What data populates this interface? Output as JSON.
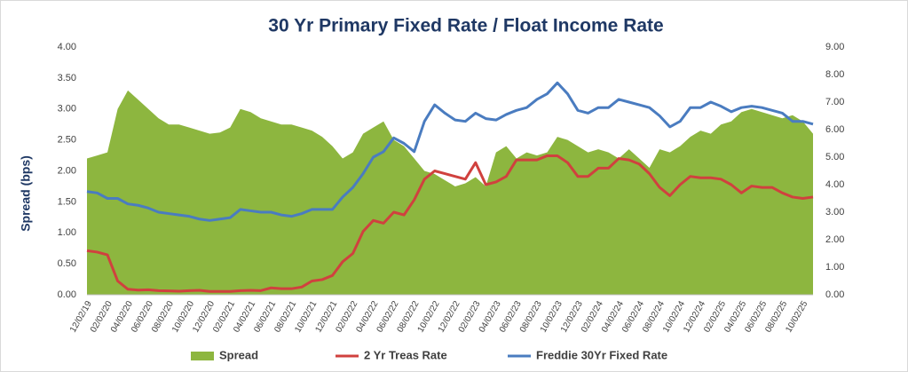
{
  "chart_data": {
    "type": "combo",
    "title": "30 Yr Primary Fixed Rate / Float Income Rate",
    "y_label": "Spread (bps)",
    "grid": false,
    "categories": [
      "12/02/19",
      null,
      "02/02/20",
      null,
      "04/02/20",
      null,
      "06/02/20",
      null,
      "08/02/20",
      null,
      "10/02/20",
      null,
      "12/02/20",
      null,
      "02/02/21",
      null,
      "04/02/21",
      null,
      "06/02/21",
      null,
      "08/02/21",
      null,
      "10/02/21",
      null,
      "12/02/21",
      null,
      "02/02/22",
      null,
      "04/02/22",
      null,
      "06/02/22",
      null,
      "08/02/22",
      null,
      "10/02/22",
      null,
      "12/02/22",
      null,
      "02/02/23",
      null,
      "04/02/23",
      null,
      "06/02/23",
      null,
      "08/02/23",
      null,
      "10/02/23",
      null,
      "12/02/23",
      null,
      "02/02/24",
      null,
      "04/02/24",
      null,
      "06/02/24",
      null,
      "08/02/24",
      null,
      "10/02/24",
      null,
      "12/02/24",
      null,
      "02/02/25",
      null,
      "04/02/25",
      null,
      "06/02/25",
      null,
      "08/02/25",
      null,
      "10/02/25",
      null
    ],
    "ylim": [
      0,
      4
    ],
    "yticks": [
      {
        "value": 0,
        "label": "0.00"
      },
      {
        "value": 0.5,
        "label": "0.50"
      },
      {
        "value": 1,
        "label": "1.00"
      },
      {
        "value": 1.5,
        "label": "1.50"
      },
      {
        "value": 2,
        "label": "2.00"
      },
      {
        "value": 2.5,
        "label": "2.50"
      },
      {
        "value": 3,
        "label": "3.00"
      },
      {
        "value": 3.5,
        "label": "3.50"
      },
      {
        "value": 4,
        "label": "4.00"
      }
    ],
    "y2lim": [
      0,
      9
    ],
    "y2ticks": [
      {
        "value": 0,
        "label": "0.00"
      },
      {
        "value": 1,
        "label": "1.00"
      },
      {
        "value": 2,
        "label": "2.00"
      },
      {
        "value": 3,
        "label": "3.00"
      },
      {
        "value": 4,
        "label": "4.00"
      },
      {
        "value": 5,
        "label": "5.00"
      },
      {
        "value": 6,
        "label": "6.00"
      },
      {
        "value": 7,
        "label": "7.00"
      },
      {
        "value": 8,
        "label": "8.00"
      },
      {
        "value": 9,
        "label": "9.00"
      }
    ],
    "series": [
      {
        "name": "Spread",
        "kind": "area",
        "color": "#8db63f",
        "values": [
          2.2,
          2.25,
          2.3,
          3.0,
          3.3,
          3.15,
          3.0,
          2.85,
          2.75,
          2.75,
          2.7,
          2.65,
          2.6,
          2.62,
          2.7,
          3.0,
          2.95,
          2.85,
          2.8,
          2.75,
          2.75,
          2.7,
          2.65,
          2.55,
          2.4,
          2.2,
          2.3,
          2.6,
          2.7,
          2.8,
          2.5,
          2.4,
          2.2,
          2.0,
          1.95,
          1.85,
          1.75,
          1.8,
          1.9,
          1.75,
          2.3,
          2.4,
          2.2,
          2.3,
          2.25,
          2.3,
          2.55,
          2.5,
          2.4,
          2.3,
          2.35,
          2.3,
          2.2,
          2.35,
          2.2,
          2.05,
          2.35,
          2.3,
          2.4,
          2.55,
          2.65,
          2.6,
          2.75,
          2.8,
          2.95,
          3.0,
          2.95,
          2.9,
          2.85,
          2.9,
          2.8,
          2.6
        ]
      },
      {
        "name": "2 Yr Treas Rate",
        "kind": "line",
        "axis": "y2",
        "color": "#d0413e",
        "values": [
          1.6,
          1.55,
          1.45,
          0.5,
          0.2,
          0.17,
          0.18,
          0.15,
          0.14,
          0.13,
          0.15,
          0.16,
          0.12,
          0.12,
          0.12,
          0.15,
          0.16,
          0.15,
          0.25,
          0.22,
          0.22,
          0.28,
          0.5,
          0.55,
          0.7,
          1.2,
          1.5,
          2.3,
          2.7,
          2.6,
          3.0,
          2.9,
          3.45,
          4.2,
          4.5,
          4.4,
          4.3,
          4.2,
          4.8,
          4.0,
          4.1,
          4.3,
          4.9,
          4.9,
          4.9,
          5.05,
          5.05,
          4.8,
          4.3,
          4.3,
          4.6,
          4.6,
          4.95,
          4.9,
          4.75,
          4.4,
          3.9,
          3.6,
          4.0,
          4.3,
          4.25,
          4.25,
          4.2,
          4.0,
          3.7,
          3.95,
          3.9,
          3.9,
          3.7,
          3.55,
          3.5,
          3.55
        ]
      },
      {
        "name": "Freddie 30Yr Fixed Rate",
        "kind": "line",
        "axis": "y2",
        "color": "#4a7cc0",
        "values": [
          3.75,
          3.7,
          3.5,
          3.5,
          3.3,
          3.25,
          3.15,
          3.0,
          2.95,
          2.9,
          2.85,
          2.75,
          2.7,
          2.75,
          2.8,
          3.1,
          3.05,
          3.0,
          3.0,
          2.9,
          2.85,
          2.95,
          3.1,
          3.1,
          3.1,
          3.55,
          3.9,
          4.4,
          5.0,
          5.2,
          5.7,
          5.5,
          5.2,
          6.3,
          6.9,
          6.6,
          6.35,
          6.3,
          6.6,
          6.4,
          6.35,
          6.55,
          6.7,
          6.8,
          7.1,
          7.3,
          7.7,
          7.3,
          6.7,
          6.6,
          6.8,
          6.8,
          7.1,
          7.0,
          6.9,
          6.8,
          6.5,
          6.1,
          6.3,
          6.8,
          6.8,
          7.0,
          6.85,
          6.65,
          6.8,
          6.85,
          6.8,
          6.7,
          6.6,
          6.3,
          6.3,
          6.2
        ]
      }
    ]
  }
}
